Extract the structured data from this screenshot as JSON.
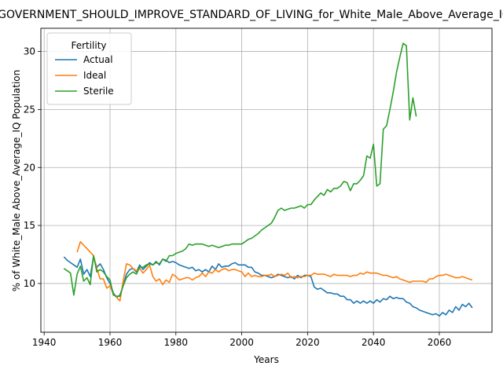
{
  "chart_data": {
    "type": "line",
    "title": "_GOVERNMENT_SHOULD_IMPROVE_STANDARD_OF_LIVING_for_White_Male_Above_Average_IQ",
    "xlabel": "Years",
    "ylabel": "% of White_Male Above_Average_IQ Population",
    "xlim": [
      1939,
      2076
    ],
    "ylim": [
      5.8,
      32.0
    ],
    "xticks": [
      1940,
      1960,
      1980,
      2000,
      2020,
      2040,
      2060
    ],
    "yticks": [
      10,
      15,
      20,
      25,
      30
    ],
    "grid": true,
    "legend": {
      "title": "Fertility",
      "position": "top-left"
    },
    "series": [
      {
        "name": "Actual",
        "color": "#1f77b4",
        "x": [
          1946,
          1947,
          1948,
          1949,
          1950,
          1951,
          1952,
          1953,
          1954,
          1955,
          1956,
          1957,
          1958,
          1959,
          1960,
          1961,
          1962,
          1963,
          1964,
          1965,
          1966,
          1967,
          1968,
          1969,
          1970,
          1971,
          1972,
          1973,
          1974,
          1975,
          1976,
          1977,
          1978,
          1979,
          1980,
          1981,
          1982,
          1983,
          1984,
          1985,
          1986,
          1987,
          1988,
          1989,
          1990,
          1991,
          1992,
          1993,
          1994,
          1995,
          1996,
          1997,
          1998,
          1999,
          2000,
          2001,
          2002,
          2003,
          2004,
          2005,
          2006,
          2007,
          2008,
          2009,
          2010,
          2011,
          2012,
          2013,
          2014,
          2015,
          2016,
          2017,
          2018,
          2019,
          2020,
          2021,
          2022,
          2023,
          2024,
          2025,
          2026,
          2027,
          2028,
          2029,
          2030,
          2031,
          2032,
          2033,
          2034,
          2035,
          2036,
          2037,
          2038,
          2039,
          2040,
          2041,
          2042,
          2043,
          2044,
          2045,
          2046,
          2047,
          2048,
          2049,
          2050,
          2051,
          2052,
          2053,
          2054,
          2055,
          2056,
          2057,
          2058,
          2059,
          2060,
          2061,
          2062,
          2063,
          2064,
          2065,
          2066,
          2067,
          2068,
          2069,
          2070
        ],
        "y": [
          12.3,
          12.0,
          11.8,
          11.6,
          11.4,
          12.1,
          10.8,
          11.2,
          10.6,
          12.3,
          11.4,
          11.7,
          11.2,
          10.5,
          10.0,
          9.2,
          8.8,
          9.0,
          9.8,
          10.8,
          11.2,
          11.3,
          11.0,
          11.6,
          11.2,
          11.5,
          11.8,
          11.6,
          11.9,
          11.6,
          12.1,
          12.0,
          11.8,
          11.9,
          11.8,
          11.6,
          11.5,
          11.4,
          11.3,
          11.4,
          11.1,
          11.2,
          11.0,
          11.2,
          11.0,
          11.5,
          11.2,
          11.7,
          11.4,
          11.5,
          11.5,
          11.7,
          11.8,
          11.6,
          11.6,
          11.6,
          11.4,
          11.4,
          11.0,
          10.9,
          10.7,
          10.7,
          10.6,
          10.5,
          10.6,
          10.8,
          10.7,
          10.6,
          10.5,
          10.6,
          10.4,
          10.7,
          10.5,
          10.7,
          10.7,
          10.6,
          9.7,
          9.5,
          9.6,
          9.4,
          9.2,
          9.2,
          9.1,
          9.1,
          8.9,
          8.9,
          8.6,
          8.6,
          8.3,
          8.5,
          8.3,
          8.5,
          8.3,
          8.5,
          8.3,
          8.6,
          8.4,
          8.7,
          8.6,
          8.9,
          8.7,
          8.8,
          8.7,
          8.7,
          8.4,
          8.3,
          8.0,
          7.9,
          7.7,
          7.6,
          7.5,
          7.4,
          7.3,
          7.4,
          7.2,
          7.5,
          7.3,
          7.7,
          7.5,
          8.0,
          7.7,
          8.2,
          8.0,
          8.3,
          7.9
        ]
      },
      {
        "name": "Ideal",
        "color": "#ff7f0e",
        "x": [
          1950,
          1951,
          1952,
          1953,
          1954,
          1955,
          1956,
          1957,
          1958,
          1959,
          1960,
          1961,
          1962,
          1963,
          1964,
          1965,
          1966,
          1967,
          1968,
          1969,
          1970,
          1971,
          1972,
          1973,
          1974,
          1975,
          1976,
          1977,
          1978,
          1979,
          1980,
          1981,
          1982,
          1983,
          1984,
          1985,
          1986,
          1987,
          1988,
          1989,
          1990,
          1991,
          1992,
          1993,
          1994,
          1995,
          1996,
          1997,
          1998,
          1999,
          2000,
          2001,
          2002,
          2003,
          2004,
          2005,
          2006,
          2007,
          2008,
          2009,
          2010,
          2011,
          2012,
          2013,
          2014,
          2015,
          2016,
          2017,
          2018,
          2019,
          2020,
          2021,
          2022,
          2023,
          2024,
          2025,
          2026,
          2027,
          2028,
          2029,
          2030,
          2031,
          2032,
          2033,
          2034,
          2035,
          2036,
          2037,
          2038,
          2039,
          2040,
          2041,
          2042,
          2043,
          2044,
          2045,
          2046,
          2047,
          2048,
          2049,
          2050,
          2051,
          2052,
          2053,
          2054,
          2055,
          2056,
          2057,
          2058,
          2059,
          2060,
          2061,
          2062,
          2063,
          2064,
          2065,
          2066,
          2067,
          2068,
          2069,
          2070
        ],
        "y": [
          12.7,
          13.6,
          13.3,
          13.0,
          12.7,
          12.4,
          11.3,
          10.4,
          10.4,
          9.6,
          9.8,
          9.1,
          8.8,
          8.5,
          10.2,
          11.7,
          11.6,
          11.3,
          11.1,
          11.3,
          10.9,
          11.2,
          11.6,
          10.6,
          10.2,
          10.4,
          9.9,
          10.3,
          10.1,
          10.8,
          10.6,
          10.3,
          10.4,
          10.5,
          10.5,
          10.3,
          10.5,
          10.6,
          10.9,
          10.6,
          11.0,
          10.9,
          11.2,
          11.0,
          11.2,
          11.3,
          11.1,
          11.2,
          11.2,
          11.1,
          11.0,
          10.6,
          10.9,
          10.6,
          10.7,
          10.6,
          10.6,
          10.7,
          10.7,
          10.8,
          10.6,
          10.7,
          10.8,
          10.7,
          10.9,
          10.5,
          10.6,
          10.5,
          10.6,
          10.6,
          10.7,
          10.7,
          10.9,
          10.8,
          10.8,
          10.8,
          10.7,
          10.6,
          10.8,
          10.7,
          10.7,
          10.7,
          10.7,
          10.6,
          10.7,
          10.7,
          10.9,
          10.8,
          11.0,
          10.9,
          10.9,
          10.9,
          10.8,
          10.7,
          10.7,
          10.6,
          10.5,
          10.6,
          10.4,
          10.3,
          10.2,
          10.1,
          10.2,
          10.2,
          10.2,
          10.2,
          10.1,
          10.4,
          10.4,
          10.6,
          10.7,
          10.7,
          10.8,
          10.7,
          10.6,
          10.5,
          10.5,
          10.6,
          10.5,
          10.4,
          10.3
        ]
      },
      {
        "name": "Sterile",
        "color": "#2ca02c",
        "x": [
          1946,
          1947,
          1948,
          1949,
          1950,
          1951,
          1952,
          1953,
          1954,
          1955,
          1956,
          1957,
          1958,
          1959,
          1960,
          1961,
          1962,
          1963,
          1964,
          1965,
          1966,
          1967,
          1968,
          1969,
          1970,
          1971,
          1972,
          1973,
          1974,
          1975,
          1976,
          1977,
          1978,
          1979,
          1980,
          1981,
          1982,
          1983,
          1984,
          1985,
          1986,
          1987,
          1988,
          1989,
          1990,
          1991,
          1992,
          1993,
          1994,
          1995,
          1996,
          1997,
          1998,
          1999,
          2000,
          2001,
          2002,
          2003,
          2004,
          2005,
          2006,
          2007,
          2008,
          2009,
          2010,
          2011,
          2012,
          2013,
          2014,
          2015,
          2016,
          2017,
          2018,
          2019,
          2020,
          2021,
          2022,
          2023,
          2024,
          2025,
          2026,
          2027,
          2028,
          2029,
          2030,
          2031,
          2032,
          2033,
          2034,
          2035,
          2036,
          2037,
          2038,
          2039,
          2040,
          2041,
          2042,
          2043,
          2044,
          2045,
          2046,
          2047,
          2048,
          2049,
          2050,
          2051,
          2052,
          2053
        ],
        "y": [
          11.3,
          11.1,
          10.9,
          9.0,
          10.8,
          11.5,
          10.2,
          10.5,
          9.9,
          12.4,
          11.0,
          11.2,
          11.0,
          10.6,
          10.3,
          9.0,
          8.9,
          8.9,
          9.8,
          10.5,
          10.8,
          11.0,
          10.8,
          11.4,
          11.4,
          11.6,
          11.7,
          11.6,
          11.8,
          11.7,
          12.1,
          11.9,
          12.4,
          12.4,
          12.6,
          12.7,
          12.8,
          13.0,
          13.4,
          13.3,
          13.4,
          13.4,
          13.4,
          13.3,
          13.2,
          13.3,
          13.2,
          13.1,
          13.2,
          13.3,
          13.3,
          13.4,
          13.4,
          13.4,
          13.4,
          13.6,
          13.8,
          13.9,
          14.1,
          14.3,
          14.6,
          14.8,
          15.0,
          15.2,
          15.7,
          16.3,
          16.5,
          16.3,
          16.4,
          16.5,
          16.5,
          16.6,
          16.7,
          16.5,
          16.8,
          16.8,
          17.2,
          17.5,
          17.8,
          17.6,
          18.1,
          17.9,
          18.2,
          18.2,
          18.4,
          18.8,
          18.7,
          18.0,
          18.6,
          18.6,
          18.9,
          19.3,
          21.0,
          20.8,
          22.0,
          18.4,
          18.6,
          23.3,
          23.6,
          25.0,
          26.5,
          28.2,
          29.5,
          30.7,
          30.5,
          24.1,
          26.0,
          24.4
        ]
      }
    ]
  }
}
